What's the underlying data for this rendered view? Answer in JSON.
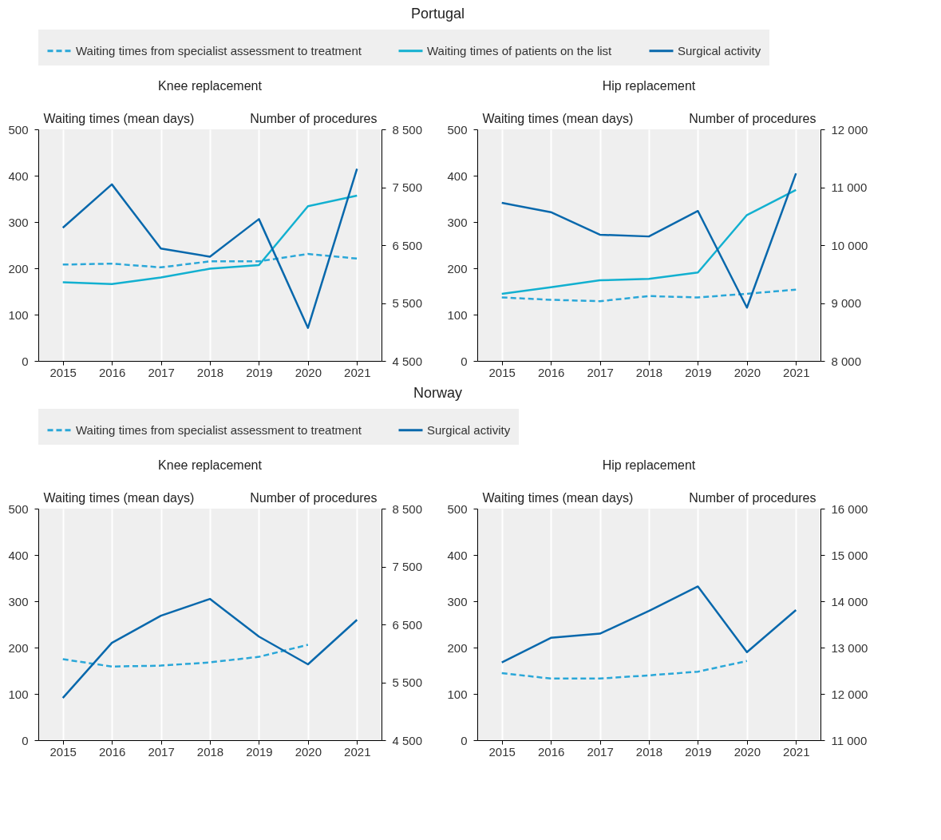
{
  "chart_data": [
    {
      "type": "line",
      "title": "Knee replacement",
      "ylabel": "Waiting times (mean days)",
      "y2label": "Number of procedures",
      "annotations": [
        "Portugal"
      ],
      "legend": "top",
      "grid": "x",
      "categories": [
        "2015",
        "2016",
        "2017",
        "2018",
        "2019",
        "2020",
        "2021"
      ],
      "ylim": [
        0,
        500
      ],
      "yticks": [
        0,
        100,
        200,
        300,
        400,
        500
      ],
      "y2lim": [
        4500,
        8500
      ],
      "y2ticks": [
        {
          "value": 4500,
          "label": "4 500"
        },
        {
          "value": 5500,
          "label": "5 500"
        },
        {
          "value": 6500,
          "label": "6 500"
        },
        {
          "value": 7500,
          "label": "7 500"
        },
        {
          "value": 8500,
          "label": "8 500"
        }
      ],
      "series": [
        {
          "name": "Waiting times from specialist assessment to treatment",
          "color": "#2aa7d8",
          "line_style": "dashed",
          "values": [
            208,
            210,
            202,
            215,
            215,
            231,
            221
          ]
        },
        {
          "name": "Waiting times of patients on the list",
          "color": "#12b0d0",
          "line_style": "solid",
          "values": [
            170,
            166,
            180,
            199,
            207,
            334,
            357
          ]
        },
        {
          "name": "Surgical activity",
          "color": "#0868ac",
          "line_style": "solid",
          "axis": "y2",
          "values": [
            6800,
            7550,
            6440,
            6300,
            6950,
            5070,
            7820
          ]
        }
      ]
    },
    {
      "type": "line",
      "title": "Hip replacement",
      "ylabel": "Waiting times (mean days)",
      "y2label": "Number of procedures",
      "legend": "top",
      "grid": "x",
      "categories": [
        "2015",
        "2016",
        "2017",
        "2018",
        "2019",
        "2020",
        "2021"
      ],
      "ylim": [
        0,
        500
      ],
      "yticks": [
        0,
        100,
        200,
        300,
        400,
        500
      ],
      "y2lim": [
        8000,
        12000
      ],
      "y2ticks": [
        {
          "value": 8000,
          "label": "8 000"
        },
        {
          "value": 9000,
          "label": "9 000"
        },
        {
          "value": 10000,
          "label": "10 000"
        },
        {
          "value": 11000,
          "label": "11 000"
        },
        {
          "value": 12000,
          "label": "12 000"
        }
      ],
      "series": [
        {
          "name": "Waiting times from specialist assessment to treatment",
          "color": "#2aa7d8",
          "line_style": "dashed",
          "values": [
            137,
            132,
            129,
            140,
            137,
            145,
            154
          ]
        },
        {
          "name": "Waiting times of patients on the list",
          "color": "#12b0d0",
          "line_style": "solid",
          "values": [
            145,
            159,
            174,
            177,
            191,
            315,
            369
          ]
        },
        {
          "name": "Surgical activity",
          "color": "#0868ac",
          "line_style": "solid",
          "axis": "y2",
          "values": [
            10730,
            10570,
            10180,
            10150,
            10590,
            8920,
            11240
          ]
        }
      ]
    },
    {
      "type": "line",
      "title": "Knee replacement",
      "ylabel": "Waiting times (mean days)",
      "y2label": "Number of procedures",
      "annotations": [
        "Norway"
      ],
      "legend": "top",
      "grid": "x",
      "categories": [
        "2015",
        "2016",
        "2017",
        "2018",
        "2019",
        "2020",
        "2021"
      ],
      "ylim": [
        0,
        500
      ],
      "yticks": [
        0,
        100,
        200,
        300,
        400,
        500
      ],
      "y2lim": [
        4500,
        8500
      ],
      "y2ticks": [
        {
          "value": 4500,
          "label": "4 500"
        },
        {
          "value": 5500,
          "label": "5 500"
        },
        {
          "value": 6500,
          "label": "6 500"
        },
        {
          "value": 7500,
          "label": "7 500"
        },
        {
          "value": 8500,
          "label": "8 500"
        }
      ],
      "series": [
        {
          "name": "Waiting times from specialist assessment to treatment",
          "color": "#2aa7d8",
          "line_style": "dashed",
          "values": [
            175,
            159,
            161,
            168,
            180,
            206,
            null
          ]
        },
        {
          "name": "Surgical activity",
          "color": "#0868ac",
          "line_style": "solid",
          "axis": "y2",
          "values": [
            5230,
            6180,
            6650,
            6940,
            6290,
            5810,
            6580
          ]
        }
      ]
    },
    {
      "type": "line",
      "title": "Hip replacement",
      "ylabel": "Waiting times (mean days)",
      "y2label": "Number of procedures",
      "legend": "top",
      "grid": "x",
      "categories": [
        "2015",
        "2016",
        "2017",
        "2018",
        "2019",
        "2020",
        "2021"
      ],
      "ylim": [
        0,
        500
      ],
      "yticks": [
        0,
        100,
        200,
        300,
        400,
        500
      ],
      "y2lim": [
        11000,
        16000
      ],
      "y2ticks": [
        {
          "value": 11000,
          "label": "11 000"
        },
        {
          "value": 12000,
          "label": "12 000"
        },
        {
          "value": 13000,
          "label": "13 000"
        },
        {
          "value": 14000,
          "label": "14 000"
        },
        {
          "value": 15000,
          "label": "15 000"
        },
        {
          "value": 16000,
          "label": "16 000"
        }
      ],
      "series": [
        {
          "name": "Waiting times from specialist assessment to treatment",
          "color": "#2aa7d8",
          "line_style": "dashed",
          "values": [
            145,
            133,
            133,
            140,
            148,
            171,
            null
          ]
        },
        {
          "name": "Surgical activity",
          "color": "#0868ac",
          "line_style": "solid",
          "axis": "y2",
          "values": [
            12680,
            13210,
            13300,
            13790,
            14320,
            12900,
            13810
          ]
        }
      ]
    }
  ]
}
